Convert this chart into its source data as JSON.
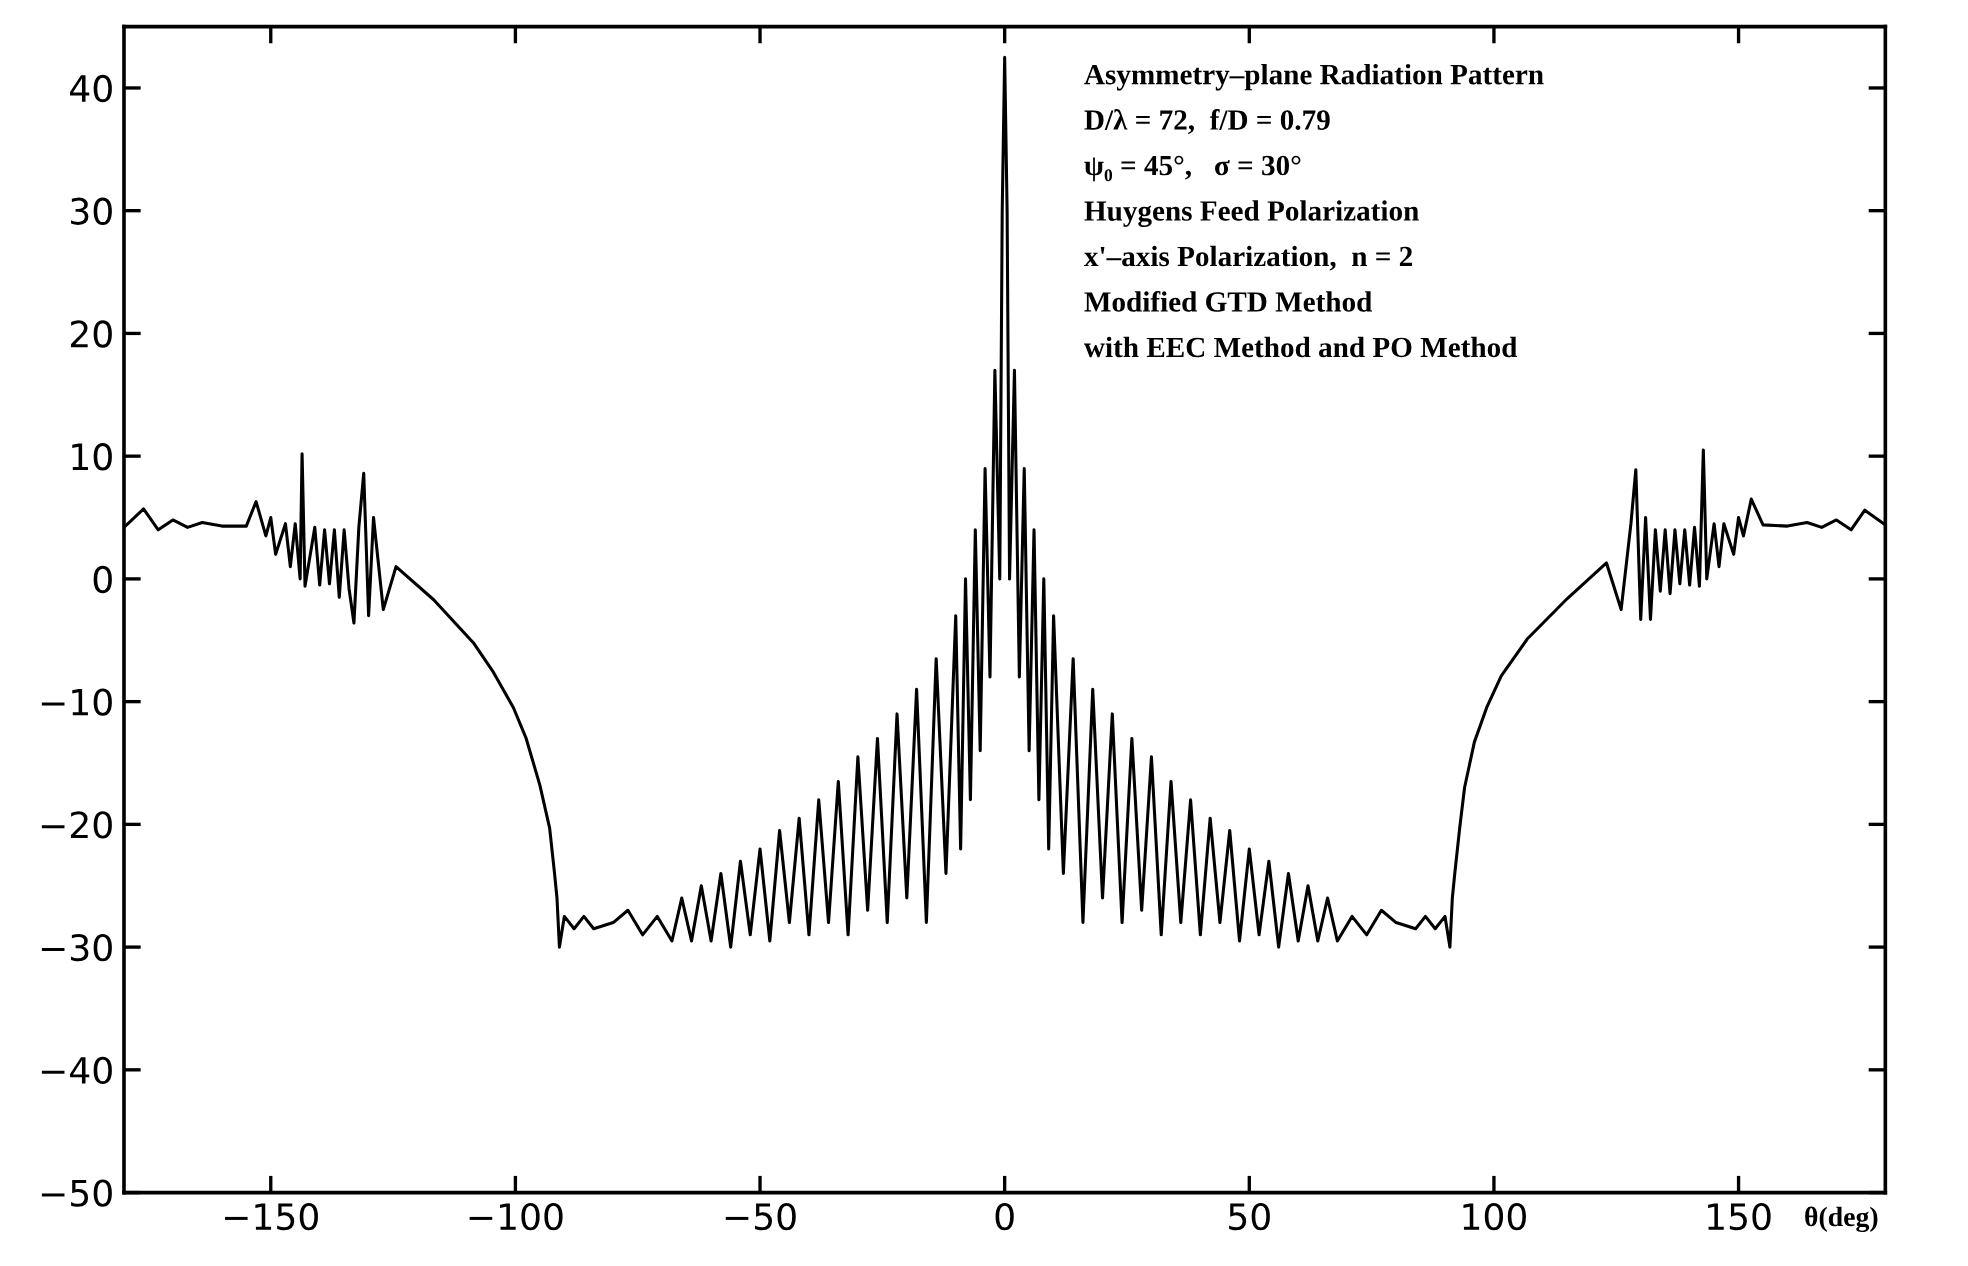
{
  "chart_data": {
    "type": "line",
    "xlabel": "θ(deg)",
    "annotations": [
      "Asymmetry–plane Radiation Pattern",
      "D/λ = 72,  f/D = 0.79",
      "ψ₀ = 45°,   σ = 30°",
      "Huygens Feed Polarization",
      "x'–axis Polarization,  n = 2",
      "Modified GTD Method",
      "with EEC Method and PO Method"
    ],
    "xlim": [
      -180,
      180
    ],
    "ylim": [
      -50,
      45
    ],
    "xticks": [
      -150,
      -100,
      -50,
      0,
      50,
      100,
      150
    ],
    "yticks": [
      -50,
      -40,
      -30,
      -20,
      -10,
      0,
      10,
      20,
      30,
      40
    ],
    "grid": false,
    "legend": false,
    "marker": "none",
    "line_style": "solid",
    "series": [
      {
        "color": "#000000",
        "x": [
          -180,
          -176,
          -173,
          -170,
          -167,
          -164,
          -160,
          -155,
          -153,
          -151,
          -150,
          -149,
          -147,
          -146,
          -145,
          -144,
          -143.6,
          -143,
          -141,
          -140,
          -139,
          -138,
          -137,
          -136,
          -135,
          -134,
          -133,
          -132,
          -131,
          -130,
          -129,
          -127,
          -124.4,
          -116.7,
          -108.6,
          -104.5,
          -100.4,
          -97.8,
          -95,
          -93,
          -92,
          -91.5,
          -91,
          -90,
          -88,
          -86,
          -84,
          -80,
          -77,
          -74,
          -71,
          -68,
          -66,
          -64,
          -62,
          -60,
          -58,
          -56,
          -54,
          -52,
          -50,
          -48,
          -46,
          -44,
          -42,
          -40,
          -38,
          -36,
          -34,
          -32,
          -30,
          -28,
          -26,
          -24,
          -22,
          -20,
          -18,
          -16,
          -14,
          -12,
          -10,
          -9,
          -8,
          -7,
          -6,
          -5,
          -4,
          -3,
          -2,
          -1,
          -0.5,
          0,
          0.5,
          1,
          2,
          3,
          4,
          5,
          6,
          7,
          8,
          9,
          10,
          12,
          14,
          16,
          18,
          20,
          22,
          24,
          26,
          28,
          30,
          32,
          34,
          36,
          38,
          40,
          42,
          44,
          46,
          48,
          50,
          52,
          54,
          56,
          58,
          60,
          62,
          64,
          66,
          68,
          71,
          74,
          77,
          80,
          84,
          86,
          88,
          90,
          91,
          91.5,
          92,
          93,
          94,
          96,
          98.6,
          101.5,
          106.8,
          115,
          123,
          126,
          128,
          129,
          130,
          131,
          132,
          133,
          134,
          135,
          136,
          137,
          138,
          139,
          140,
          141,
          142,
          142.8,
          143.5,
          145,
          146,
          147,
          149,
          150,
          151,
          152.6,
          155,
          160,
          164,
          167,
          170,
          173,
          175.8,
          180
        ],
        "values": [
          4.2,
          5.7,
          4.0,
          4.8,
          4.2,
          4.6,
          4.3,
          4.3,
          6.3,
          3.5,
          5.0,
          2.0,
          4.5,
          1.0,
          4.5,
          0.0,
          10.2,
          -0.6,
          4.2,
          -0.5,
          4.0,
          -0.4,
          4.0,
          -1.5,
          4.0,
          -0.8,
          -3.6,
          4.2,
          8.6,
          -3.0,
          5.0,
          -2.5,
          1.0,
          -1.7,
          -5.2,
          -7.6,
          -10.5,
          -13.0,
          -16.8,
          -20.3,
          -24.0,
          -26.0,
          -30.0,
          -27.5,
          -28.5,
          -27.5,
          -28.5,
          -28.0,
          -27.0,
          -29.0,
          -27.5,
          -29.5,
          -26.0,
          -29.5,
          -25.0,
          -29.5,
          -24.0,
          -30.0,
          -23.0,
          -29.0,
          -22.0,
          -29.5,
          -20.5,
          -28.0,
          -19.5,
          -29.0,
          -18.0,
          -28.0,
          -16.5,
          -29.0,
          -14.5,
          -27.0,
          -13.0,
          -28.0,
          -11.0,
          -26.0,
          -9.0,
          -28.0,
          -6.5,
          -24.0,
          -3.0,
          -22.0,
          0.0,
          -18.0,
          4.0,
          -14.0,
          9.0,
          -8.0,
          17.0,
          0.0,
          30.0,
          42.5,
          30.0,
          0.0,
          17.0,
          -8.0,
          9.0,
          -14.0,
          4.0,
          -18.0,
          0.0,
          -22.0,
          -3.0,
          -24.0,
          -6.5,
          -28.0,
          -9.0,
          -26.0,
          -11.0,
          -28.0,
          -13.0,
          -27.0,
          -14.5,
          -29.0,
          -16.5,
          -28.0,
          -18.0,
          -29.0,
          -19.5,
          -28.0,
          -20.5,
          -29.5,
          -22.0,
          -29.0,
          -23.0,
          -30.0,
          -24.0,
          -29.5,
          -25.0,
          -29.5,
          -26.0,
          -29.5,
          -27.5,
          -29.0,
          -27.0,
          -28.0,
          -28.5,
          -27.5,
          -28.5,
          -27.5,
          -30.0,
          -26.0,
          -24.0,
          -20.3,
          -17.0,
          -13.3,
          -10.4,
          -7.9,
          -4.9,
          -1.6,
          1.3,
          -2.5,
          4.5,
          8.9,
          -3.3,
          5.0,
          -3.3,
          4.0,
          -1.0,
          4.0,
          -1.2,
          4.0,
          -0.4,
          4.0,
          -0.5,
          4.2,
          -0.6,
          10.5,
          0.0,
          4.5,
          1.0,
          4.5,
          2.0,
          5.0,
          3.5,
          6.5,
          4.4,
          4.3,
          4.6,
          4.2,
          4.8,
          4.0,
          5.6,
          4.4
        ]
      }
    ]
  }
}
